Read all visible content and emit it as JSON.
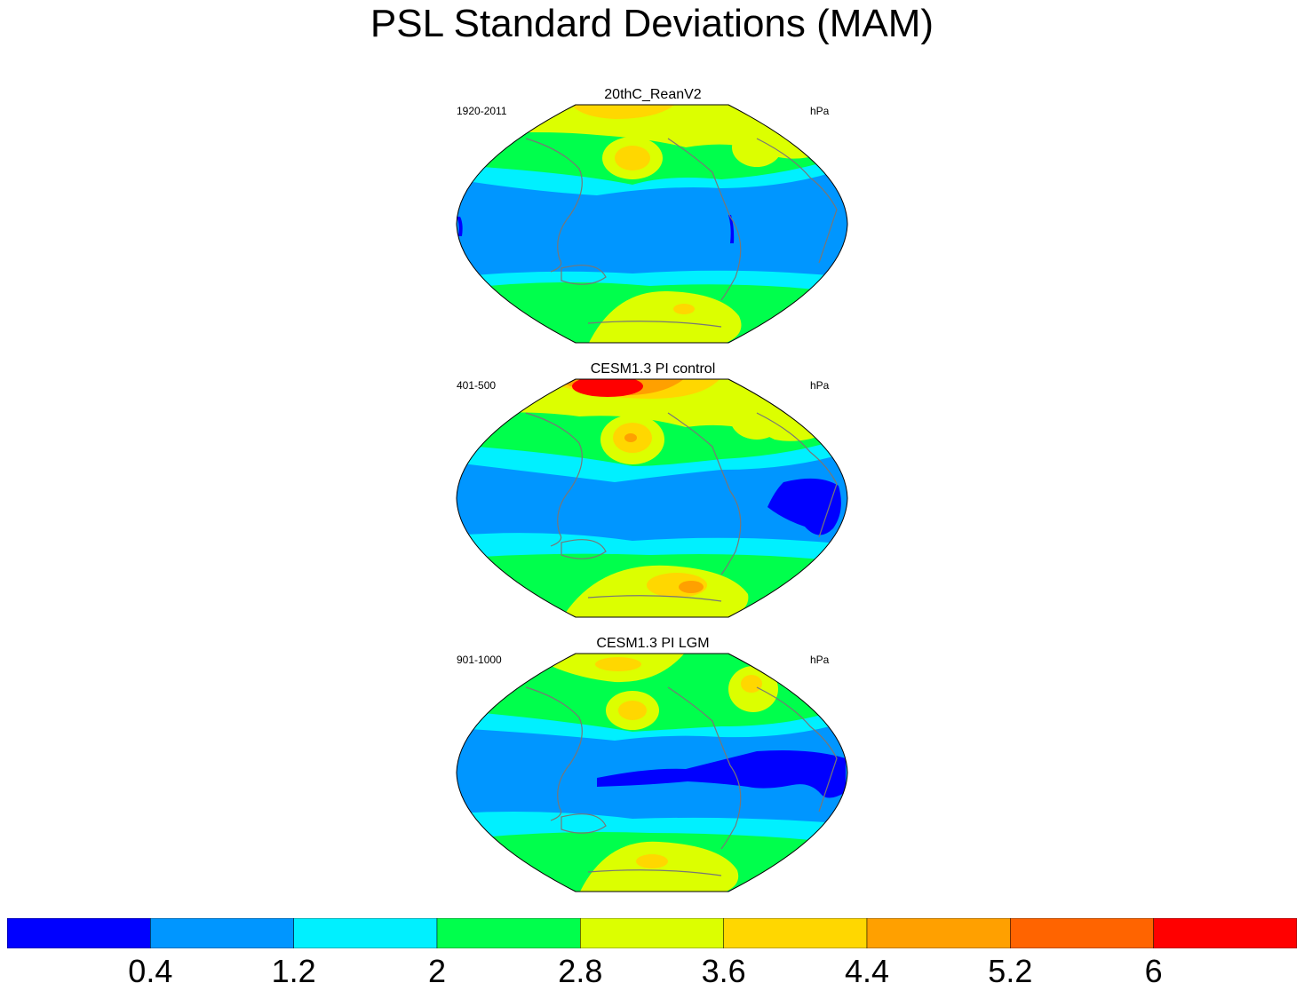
{
  "title": "PSL Standard Deviations (MAM)",
  "panels": [
    {
      "name": "20thC_ReanV2",
      "period": "1920-2011",
      "units": "hPa"
    },
    {
      "name": "CESM1.3 PI control",
      "period": "401-500",
      "units": "hPa"
    },
    {
      "name": "CESM1.3 PI LGM",
      "period": "901-1000",
      "units": "hPa"
    }
  ],
  "colorbar": {
    "labels": [
      "0.4",
      "1.2",
      "2",
      "2.8",
      "3.6",
      "4.4",
      "5.2",
      "6"
    ],
    "colors": [
      "#0000ff",
      "#0096ff",
      "#00f0ff",
      "#00ff4c",
      "#dcff00",
      "#ffd700",
      "#ffa000",
      "#ff6400",
      "#ff0000"
    ]
  }
}
